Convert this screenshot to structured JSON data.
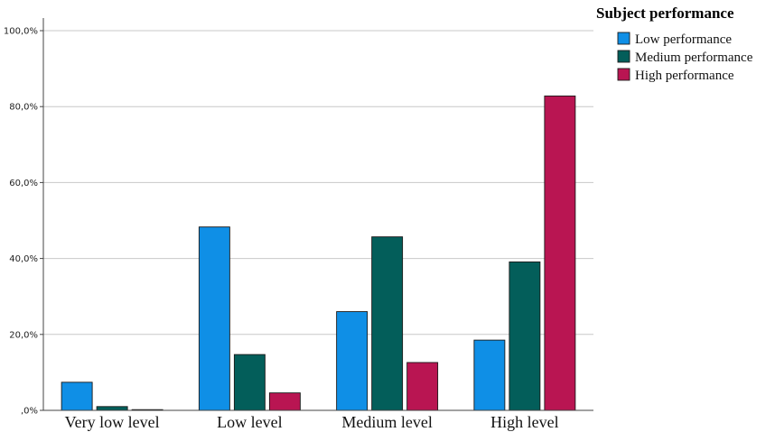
{
  "chart_data": {
    "type": "bar",
    "title": "",
    "xlabel": "",
    "ylabel": "",
    "categories": [
      "Very low level",
      "Low level",
      "Medium level",
      "High level"
    ],
    "series": [
      {
        "name": "Low performance",
        "color": "#0f8fe6",
        "values": [
          7.4,
          48.3,
          26.0,
          18.5
        ]
      },
      {
        "name": "Medium performance",
        "color": "#035e5a",
        "values": [
          1.0,
          14.7,
          45.7,
          39.1
        ]
      },
      {
        "name": "High performance",
        "color": "#b91552",
        "values": [
          0.0,
          4.6,
          12.6,
          82.8
        ]
      }
    ],
    "ylim": [
      0,
      100
    ],
    "yticks": [
      0,
      20,
      40,
      60,
      80,
      100
    ],
    "ytick_labels": [
      ",0%",
      "20,0%",
      "40,0%",
      "60,0%",
      "80,0%",
      "100,0%"
    ],
    "grid": true,
    "legend": {
      "title": "Subject performance",
      "position": "top-right"
    }
  }
}
